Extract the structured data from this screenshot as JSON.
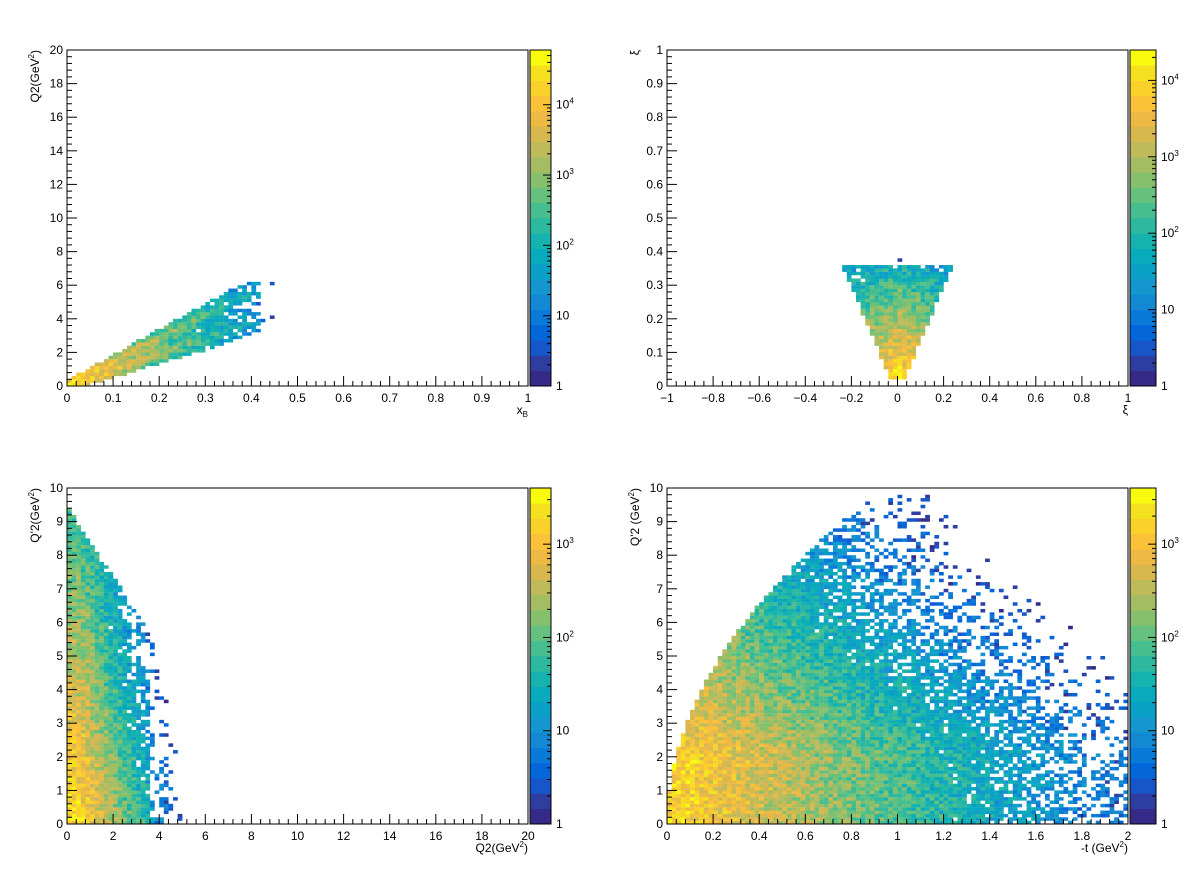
{
  "palette": [
    "#352a87",
    "#2d3ea0",
    "#1656c8",
    "#0467d9",
    "#0a7ad9",
    "#1388d3",
    "#1496cf",
    "#0ba1c6",
    "#09aabb",
    "#16b2ae",
    "#2cb99f",
    "#47be8f",
    "#65c17d",
    "#86c06d",
    "#a4bd63",
    "#bfbb5a",
    "#d8b74f",
    "#ecb945",
    "#fac238",
    "#fad12b",
    "#f5e01f",
    "#f9fb0e"
  ],
  "chart_data": [
    {
      "type": "heatmap",
      "xlabel": "x",
      "xlabel_sub": "B",
      "ylabel": "Q2(GeV",
      "ylabel_sup": "2",
      "ylabel_end": ")",
      "xlim": [
        0,
        1
      ],
      "ylim": [
        0,
        20
      ],
      "x_ticks": [
        "0",
        "0.1",
        "0.2",
        "0.3",
        "0.4",
        "0.5",
        "0.6",
        "0.7",
        "0.8",
        "0.9",
        "1"
      ],
      "x_tick_values": [
        0,
        0.1,
        0.2,
        0.3,
        0.4,
        0.5,
        0.6,
        0.7,
        0.8,
        0.9,
        1
      ],
      "y_ticks": [
        "0",
        "2",
        "4",
        "6",
        "8",
        "10",
        "12",
        "14",
        "16",
        "18",
        "20"
      ],
      "y_tick_values": [
        0,
        2,
        4,
        6,
        8,
        10,
        12,
        14,
        16,
        18,
        20
      ],
      "colorbar": {
        "scale": "log",
        "range": [
          1,
          60000
        ],
        "labels": [
          {
            "base": "1",
            "exp": ""
          },
          {
            "base": "10",
            "exp": ""
          },
          {
            "base": "10",
            "exp": "2"
          },
          {
            "base": "10",
            "exp": "3"
          },
          {
            "base": "10",
            "exp": "4"
          }
        ],
        "label_values": [
          1,
          10,
          100,
          1000,
          10000
        ]
      },
      "shape": "xb_q2"
    },
    {
      "type": "heatmap",
      "xlabel": "ξ",
      "xlabel_sub": "",
      "ylabel": "ξ",
      "ylabel_sup": "",
      "ylabel_end": "",
      "xlim": [
        -1,
        1
      ],
      "ylim": [
        0,
        1
      ],
      "x_ticks": [
        "−1",
        "−0.8",
        "−0.6",
        "−0.4",
        "−0.2",
        "0",
        "0.2",
        "0.4",
        "0.6",
        "0.8",
        "1"
      ],
      "x_tick_values": [
        -1,
        -0.8,
        -0.6,
        -0.4,
        -0.2,
        0,
        0.2,
        0.4,
        0.6,
        0.8,
        1
      ],
      "y_ticks": [
        "0",
        "0.1",
        "0.2",
        "0.3",
        "0.4",
        "0.5",
        "0.6",
        "0.7",
        "0.8",
        "0.9",
        "1"
      ],
      "y_tick_values": [
        0,
        0.1,
        0.2,
        0.3,
        0.4,
        0.5,
        0.6,
        0.7,
        0.8,
        0.9,
        1
      ],
      "colorbar": {
        "scale": "log",
        "range": [
          1,
          25000
        ],
        "labels": [
          {
            "base": "1",
            "exp": ""
          },
          {
            "base": "10",
            "exp": ""
          },
          {
            "base": "10",
            "exp": "2"
          },
          {
            "base": "10",
            "exp": "3"
          },
          {
            "base": "10",
            "exp": "4"
          }
        ],
        "label_values": [
          1,
          10,
          100,
          1000,
          10000
        ]
      },
      "shape": "xi_xi"
    },
    {
      "type": "heatmap",
      "xlabel": "Q2(GeV",
      "xlabel_sup": "2",
      "xlabel_end": ")",
      "ylabel": "Q'2(GeV",
      "ylabel_sup": "2",
      "ylabel_end": ")",
      "xlim": [
        0,
        20
      ],
      "ylim": [
        0,
        10
      ],
      "x_ticks": [
        "0",
        "2",
        "4",
        "6",
        "8",
        "10",
        "12",
        "14",
        "16",
        "18",
        "20"
      ],
      "x_tick_values": [
        0,
        2,
        4,
        6,
        8,
        10,
        12,
        14,
        16,
        18,
        20
      ],
      "y_ticks": [
        "0",
        "1",
        "2",
        "3",
        "4",
        "5",
        "6",
        "7",
        "8",
        "9",
        "10"
      ],
      "y_tick_values": [
        0,
        1,
        2,
        3,
        4,
        5,
        6,
        7,
        8,
        9,
        10
      ],
      "colorbar": {
        "scale": "log",
        "range": [
          1,
          4000
        ],
        "labels": [
          {
            "base": "1",
            "exp": ""
          },
          {
            "base": "10",
            "exp": ""
          },
          {
            "base": "10",
            "exp": "2"
          },
          {
            "base": "10",
            "exp": "3"
          }
        ],
        "label_values": [
          1,
          10,
          100,
          1000
        ]
      },
      "shape": "q2_qp2"
    },
    {
      "type": "heatmap",
      "xlabel": "-t (GeV",
      "xlabel_sup": "2",
      "xlabel_end": ")",
      "ylabel": "Q'2 (GeV",
      "ylabel_sup": "2",
      "ylabel_end": ")",
      "xlim": [
        0,
        2
      ],
      "ylim": [
        0,
        10
      ],
      "x_ticks": [
        "0",
        "0.2",
        "0.4",
        "0.6",
        "0.8",
        "1",
        "1.2",
        "1.4",
        "1.6",
        "1.8",
        "2"
      ],
      "x_tick_values": [
        0,
        0.2,
        0.4,
        0.6,
        0.8,
        1,
        1.2,
        1.4,
        1.6,
        1.8,
        2
      ],
      "y_ticks": [
        "0",
        "1",
        "2",
        "3",
        "4",
        "5",
        "6",
        "7",
        "8",
        "9",
        "10"
      ],
      "y_tick_values": [
        0,
        1,
        2,
        3,
        4,
        5,
        6,
        7,
        8,
        9,
        10
      ],
      "colorbar": {
        "scale": "log",
        "range": [
          1,
          4000
        ],
        "labels": [
          {
            "base": "1",
            "exp": ""
          },
          {
            "base": "10",
            "exp": ""
          },
          {
            "base": "10",
            "exp": "2"
          },
          {
            "base": "10",
            "exp": "3"
          }
        ],
        "label_values": [
          1,
          10,
          100,
          1000
        ]
      },
      "shape": "t_qp2"
    }
  ]
}
